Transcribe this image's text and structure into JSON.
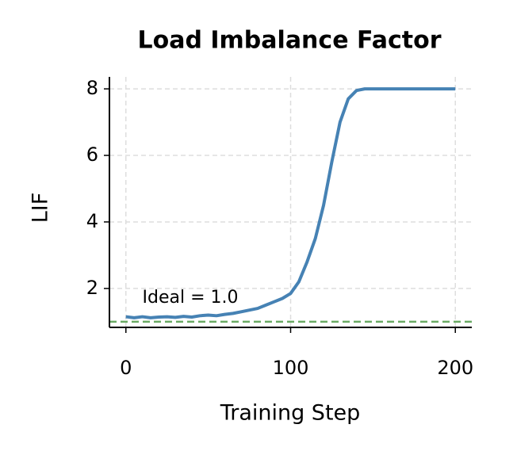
{
  "chart_data": {
    "type": "line",
    "title": "Load Imbalance Factor",
    "xlabel": "Training Step",
    "ylabel": "LIF",
    "x": [
      0,
      5,
      10,
      15,
      20,
      25,
      30,
      35,
      40,
      45,
      50,
      55,
      60,
      65,
      70,
      75,
      80,
      85,
      90,
      95,
      100,
      105,
      110,
      115,
      120,
      125,
      130,
      135,
      140,
      145,
      150,
      155,
      160,
      165,
      170,
      175,
      180,
      185,
      190,
      195,
      200
    ],
    "values": [
      1.15,
      1.12,
      1.15,
      1.12,
      1.14,
      1.15,
      1.13,
      1.16,
      1.14,
      1.18,
      1.2,
      1.18,
      1.22,
      1.25,
      1.3,
      1.35,
      1.4,
      1.5,
      1.6,
      1.7,
      1.85,
      2.2,
      2.8,
      3.5,
      4.5,
      5.8,
      7.0,
      7.7,
      7.95,
      8.0,
      8.0,
      8.0,
      8.0,
      8.0,
      8.0,
      8.0,
      8.0,
      8.0,
      8.0,
      8.0,
      8.0
    ],
    "color": "#4682b4",
    "reference": {
      "value": 1.0,
      "label": "Ideal = 1.0",
      "color": "#6aaa64",
      "text_color": "#008000"
    },
    "xlim": [
      -10,
      210
    ],
    "ylim": [
      0.83,
      8.36
    ],
    "xticks": [
      0,
      100,
      200
    ],
    "yticks": [
      2,
      4,
      6,
      8
    ],
    "grid": true
  }
}
